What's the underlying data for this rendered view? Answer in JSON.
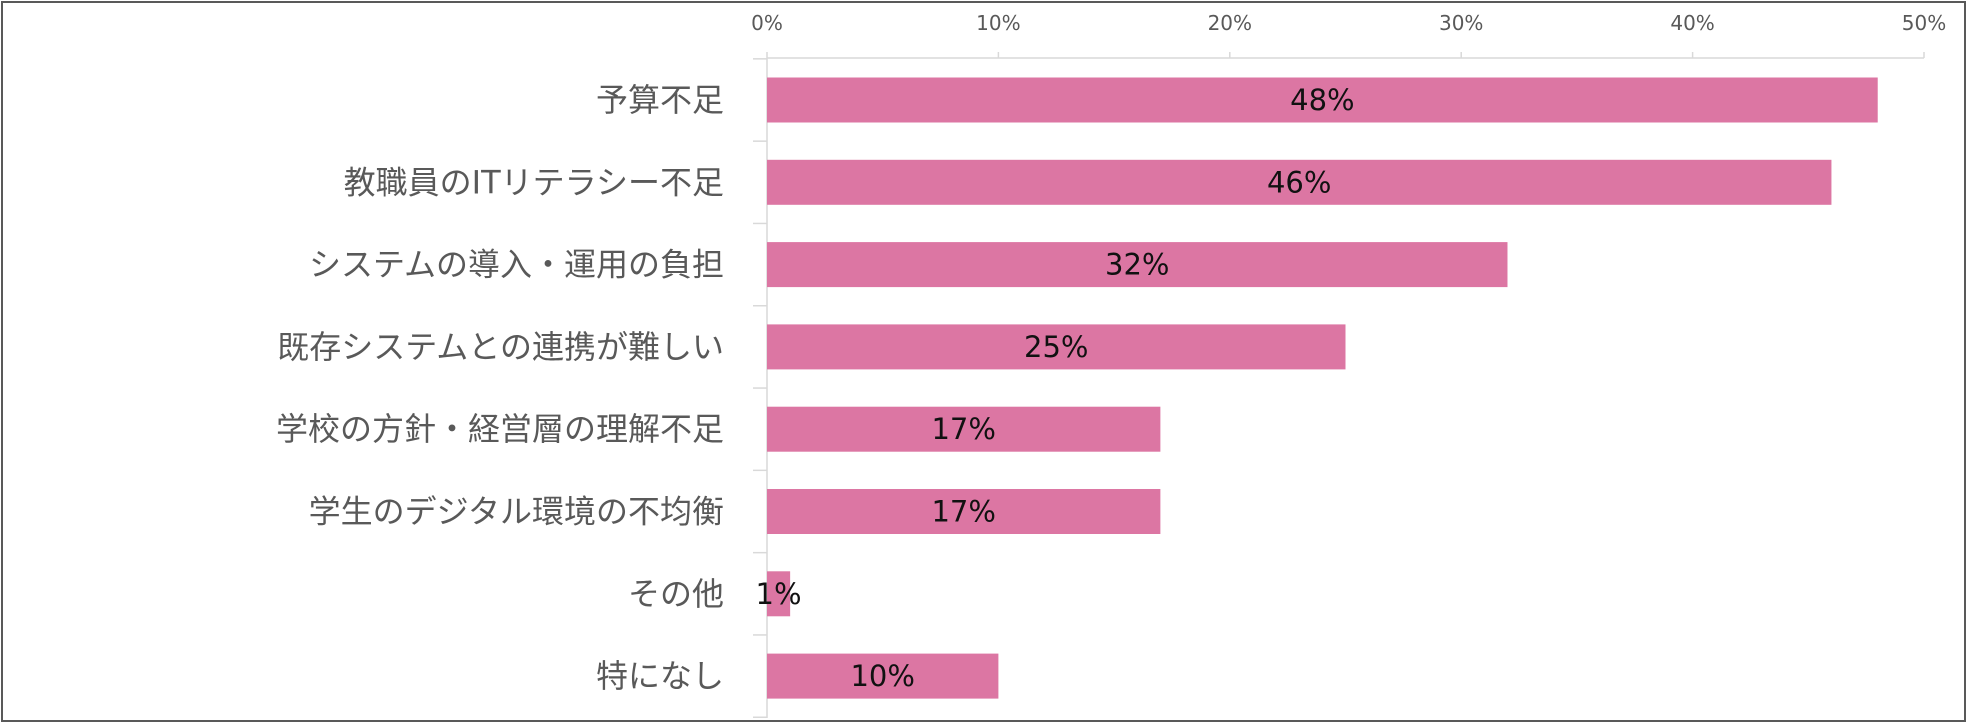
{
  "chart_data": {
    "type": "bar",
    "orientation": "horizontal",
    "categories": [
      "予算不足",
      "教職員のITリテラシー不足",
      "システムの導入・運用の負担",
      "既存システムとの連携が難しい",
      "学校の方針・経営層の理解不足",
      "学生のデジタル環境の不均衡",
      "その他",
      "特になし"
    ],
    "values": [
      48,
      46,
      32,
      25,
      17,
      17,
      1,
      10
    ],
    "data_labels": [
      "48%",
      "46%",
      "32%",
      "25%",
      "17%",
      "17%",
      "1%",
      "10%"
    ],
    "x_ticks": [
      "0%",
      "10%",
      "20%",
      "30%",
      "40%",
      "50%"
    ],
    "xlim": [
      0,
      50
    ],
    "x_axis_position": "top",
    "grid": false,
    "legend": "none",
    "bar_color": "#DC76A3",
    "title": "",
    "xlabel": "",
    "ylabel": ""
  }
}
